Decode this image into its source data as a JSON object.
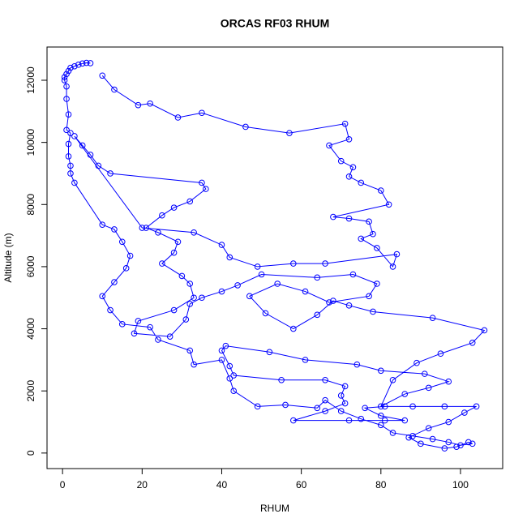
{
  "chart_data": {
    "type": "line",
    "title": "ORCAS RF03 RHUM",
    "x_label": "RHUM",
    "y_label": "Altitude (m)",
    "color": "#0000ff",
    "xlim": [
      -3.9,
      110.6
    ],
    "ylim": [
      -500,
      13070
    ],
    "xticks": [
      0,
      20,
      40,
      60,
      80,
      100
    ],
    "yticks": [
      0,
      2000,
      4000,
      6000,
      8000,
      10000,
      12000
    ],
    "x": [
      7,
      6,
      5,
      4,
      3,
      2,
      1.5,
      1,
      0.5,
      0.5,
      1,
      1,
      1.5,
      1,
      2,
      1.5,
      1.5,
      2,
      2,
      3,
      10,
      13,
      15,
      17,
      16,
      13,
      10,
      12,
      15,
      22,
      24,
      32,
      33,
      40,
      42,
      43,
      49,
      56,
      64,
      66,
      70,
      75,
      80,
      83,
      88,
      93,
      97,
      100,
      103,
      102,
      99,
      96,
      90,
      87,
      92,
      97,
      101,
      104,
      96,
      88,
      81,
      76,
      80,
      86,
      81,
      72,
      58,
      66,
      71,
      70,
      71,
      66,
      55,
      43,
      42,
      40,
      41,
      52,
      61,
      74,
      80,
      91,
      97,
      92,
      86,
      80,
      83,
      89,
      95,
      103,
      106,
      93,
      78,
      72,
      68,
      64,
      58,
      51,
      47,
      54,
      61,
      67,
      77,
      79,
      73,
      64,
      50,
      44,
      40,
      35,
      32,
      31,
      27,
      18,
      19,
      28,
      33,
      32,
      30,
      25,
      28,
      29,
      24,
      21,
      25,
      28,
      32,
      36,
      35,
      12,
      9,
      7,
      5,
      3,
      20,
      33,
      40,
      42,
      49,
      58,
      66,
      84,
      83,
      79,
      75,
      78,
      77,
      72,
      68,
      82,
      80,
      75,
      72,
      73,
      70,
      67,
      72,
      71,
      57,
      46,
      35,
      29,
      22,
      19,
      13,
      10
    ],
    "values": [
      12550,
      12560,
      12540,
      12500,
      12450,
      12400,
      12300,
      12200,
      12100,
      12000,
      11800,
      11400,
      10900,
      10400,
      10300,
      9950,
      9550,
      9250,
      9000,
      8700,
      7350,
      7200,
      6800,
      6350,
      5950,
      5500,
      5050,
      4600,
      4150,
      4050,
      3650,
      3300,
      2850,
      3000,
      2400,
      2000,
      1500,
      1550,
      1450,
      1700,
      1350,
      1100,
      900,
      650,
      550,
      450,
      350,
      250,
      300,
      350,
      200,
      150,
      300,
      500,
      800,
      1000,
      1300,
      1500,
      1500,
      1500,
      1500,
      1450,
      1200,
      1050,
      1050,
      1050,
      1050,
      1350,
      1600,
      1850,
      2150,
      2350,
      2350,
      2500,
      2800,
      3300,
      3450,
      3250,
      3000,
      2850,
      2650,
      2550,
      2300,
      2100,
      1900,
      1500,
      2350,
      2900,
      3200,
      3550,
      3950,
      4350,
      4550,
      4750,
      4900,
      4450,
      4000,
      4500,
      5050,
      5450,
      5200,
      4850,
      5050,
      5450,
      5750,
      5650,
      5750,
      5400,
      5200,
      5000,
      4800,
      4300,
      3750,
      3850,
      4250,
      4600,
      5000,
      5450,
      5700,
      6100,
      6450,
      6800,
      7100,
      7250,
      7650,
      7900,
      8100,
      8500,
      8700,
      9000,
      9250,
      9600,
      9900,
      10200,
      7250,
      7100,
      6700,
      6300,
      6000,
      6100,
      6100,
      6400,
      6000,
      6600,
      6900,
      7050,
      7450,
      7550,
      7600,
      8000,
      8450,
      8700,
      8900,
      9200,
      9400,
      9900,
      10100,
      10600,
      10300,
      10500,
      10950,
      10800,
      11250,
      11200,
      11700,
      12150
    ]
  }
}
